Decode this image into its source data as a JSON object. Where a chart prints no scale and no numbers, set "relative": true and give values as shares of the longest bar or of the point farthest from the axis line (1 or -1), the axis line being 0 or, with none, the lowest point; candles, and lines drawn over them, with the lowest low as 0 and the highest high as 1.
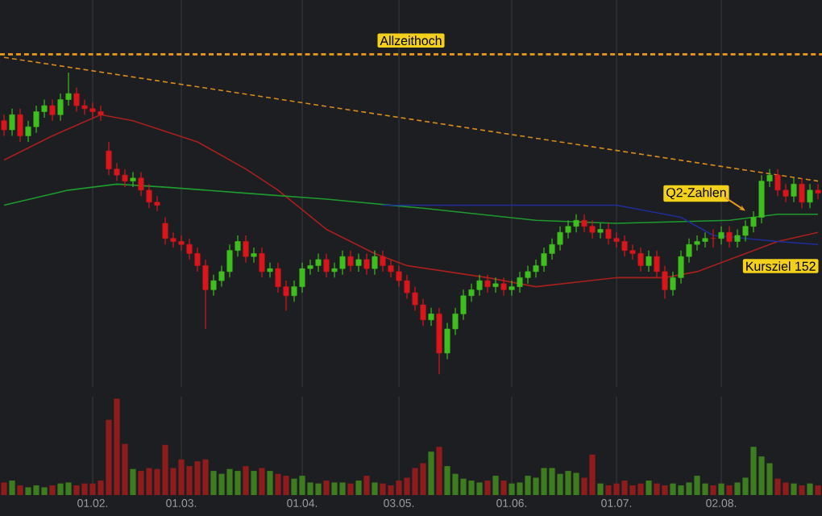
{
  "chart_data": [
    {
      "type": "candlestick",
      "relative": true,
      "grid": "x",
      "tick_labels": false,
      "categories": [
        null,
        null,
        null,
        null,
        null,
        null,
        null,
        null,
        null,
        null,
        null,
        "01.02.",
        null,
        null,
        null,
        null,
        null,
        null,
        null,
        null,
        null,
        null,
        "01.03.",
        null,
        null,
        null,
        null,
        null,
        null,
        null,
        null,
        null,
        null,
        null,
        null,
        null,
        null,
        "01.04.",
        null,
        null,
        null,
        null,
        null,
        null,
        null,
        null,
        null,
        null,
        null,
        "03.05.",
        null,
        null,
        null,
        null,
        null,
        null,
        null,
        null,
        null,
        null,
        null,
        null,
        null,
        "01.06.",
        null,
        null,
        null,
        null,
        null,
        null,
        null,
        null,
        null,
        null,
        null,
        null,
        "01.07.",
        null,
        null,
        null,
        null,
        null,
        null,
        null,
        null,
        null,
        null,
        null,
        null,
        "02.08.",
        null,
        null,
        null,
        null,
        null,
        null,
        null,
        null,
        null,
        null,
        null,
        null
      ],
      "ohlc": [
        [
          0.84,
          0.86,
          0.79,
          0.81
        ],
        [
          0.81,
          0.88,
          0.79,
          0.86
        ],
        [
          0.86,
          0.88,
          0.77,
          0.79
        ],
        [
          0.79,
          0.84,
          0.77,
          0.82
        ],
        [
          0.82,
          0.89,
          0.8,
          0.87
        ],
        [
          0.87,
          0.91,
          0.85,
          0.89
        ],
        [
          0.89,
          0.91,
          0.84,
          0.86
        ],
        [
          0.86,
          0.93,
          0.84,
          0.91
        ],
        [
          0.91,
          1.0,
          0.89,
          0.93
        ],
        [
          0.93,
          0.95,
          0.87,
          0.89
        ],
        [
          0.89,
          0.91,
          0.86,
          0.88
        ],
        [
          0.88,
          0.9,
          0.85,
          0.87
        ],
        [
          0.87,
          0.89,
          0.84,
          0.86
        ],
        [
          0.74,
          0.77,
          0.66,
          0.68
        ],
        [
          0.68,
          0.7,
          0.64,
          0.66
        ],
        [
          0.66,
          0.68,
          0.62,
          0.64
        ],
        [
          0.64,
          0.67,
          0.62,
          0.65
        ],
        [
          0.65,
          0.67,
          0.59,
          0.61
        ],
        [
          0.61,
          0.63,
          0.55,
          0.57
        ],
        [
          0.57,
          0.59,
          0.54,
          0.56
        ],
        [
          0.5,
          0.52,
          0.43,
          0.45
        ],
        [
          0.45,
          0.47,
          0.42,
          0.44
        ],
        [
          0.44,
          0.46,
          0.41,
          0.43
        ],
        [
          0.43,
          0.45,
          0.38,
          0.4
        ],
        [
          0.4,
          0.42,
          0.34,
          0.36
        ],
        [
          0.36,
          0.38,
          0.15,
          0.28
        ],
        [
          0.28,
          0.33,
          0.26,
          0.31
        ],
        [
          0.31,
          0.36,
          0.29,
          0.34
        ],
        [
          0.34,
          0.43,
          0.32,
          0.41
        ],
        [
          0.41,
          0.46,
          0.39,
          0.44
        ],
        [
          0.44,
          0.46,
          0.37,
          0.39
        ],
        [
          0.39,
          0.42,
          0.37,
          0.4
        ],
        [
          0.4,
          0.42,
          0.32,
          0.34
        ],
        [
          0.34,
          0.37,
          0.32,
          0.35
        ],
        [
          0.35,
          0.37,
          0.27,
          0.29
        ],
        [
          0.29,
          0.31,
          0.21,
          0.26
        ],
        [
          0.26,
          0.31,
          0.24,
          0.29
        ],
        [
          0.29,
          0.37,
          0.27,
          0.35
        ],
        [
          0.35,
          0.38,
          0.33,
          0.36
        ],
        [
          0.36,
          0.4,
          0.34,
          0.38
        ],
        [
          0.38,
          0.4,
          0.32,
          0.34
        ],
        [
          0.34,
          0.37,
          0.32,
          0.35
        ],
        [
          0.35,
          0.41,
          0.33,
          0.39
        ],
        [
          0.39,
          0.41,
          0.34,
          0.36
        ],
        [
          0.36,
          0.4,
          0.34,
          0.38
        ],
        [
          0.38,
          0.4,
          0.33,
          0.35
        ],
        [
          0.35,
          0.41,
          0.33,
          0.39
        ],
        [
          0.39,
          0.41,
          0.34,
          0.36
        ],
        [
          0.36,
          0.38,
          0.32,
          0.34
        ],
        [
          0.34,
          0.36,
          0.29,
          0.31
        ],
        [
          0.31,
          0.33,
          0.25,
          0.27
        ],
        [
          0.27,
          0.29,
          0.21,
          0.23
        ],
        [
          0.23,
          0.25,
          0.16,
          0.18
        ],
        [
          0.18,
          0.22,
          0.16,
          0.2
        ],
        [
          0.2,
          0.22,
          0.0,
          0.07
        ],
        [
          0.07,
          0.17,
          0.05,
          0.15
        ],
        [
          0.15,
          0.22,
          0.13,
          0.2
        ],
        [
          0.2,
          0.28,
          0.18,
          0.26
        ],
        [
          0.26,
          0.3,
          0.24,
          0.28
        ],
        [
          0.28,
          0.33,
          0.26,
          0.31
        ],
        [
          0.31,
          0.33,
          0.27,
          0.29
        ],
        [
          0.29,
          0.32,
          0.27,
          0.3
        ],
        [
          0.3,
          0.32,
          0.26,
          0.28
        ],
        [
          0.28,
          0.31,
          0.26,
          0.29
        ],
        [
          0.29,
          0.34,
          0.27,
          0.32
        ],
        [
          0.32,
          0.36,
          0.3,
          0.34
        ],
        [
          0.34,
          0.38,
          0.32,
          0.36
        ],
        [
          0.36,
          0.42,
          0.34,
          0.4
        ],
        [
          0.4,
          0.45,
          0.38,
          0.43
        ],
        [
          0.43,
          0.49,
          0.41,
          0.47
        ],
        [
          0.47,
          0.51,
          0.45,
          0.49
        ],
        [
          0.49,
          0.53,
          0.47,
          0.51
        ],
        [
          0.51,
          0.53,
          0.47,
          0.49
        ],
        [
          0.49,
          0.51,
          0.45,
          0.47
        ],
        [
          0.47,
          0.5,
          0.45,
          0.48
        ],
        [
          0.48,
          0.5,
          0.43,
          0.45
        ],
        [
          0.45,
          0.47,
          0.42,
          0.44
        ],
        [
          0.44,
          0.46,
          0.39,
          0.41
        ],
        [
          0.41,
          0.43,
          0.38,
          0.4
        ],
        [
          0.4,
          0.42,
          0.34,
          0.36
        ],
        [
          0.36,
          0.41,
          0.34,
          0.39
        ],
        [
          0.39,
          0.41,
          0.32,
          0.34
        ],
        [
          0.34,
          0.36,
          0.25,
          0.28
        ],
        [
          0.28,
          0.34,
          0.26,
          0.32
        ],
        [
          0.32,
          0.41,
          0.3,
          0.39
        ],
        [
          0.39,
          0.45,
          0.37,
          0.43
        ],
        [
          0.43,
          0.46,
          0.41,
          0.44
        ],
        [
          0.44,
          0.47,
          0.42,
          0.45
        ],
        [
          0.45,
          0.48,
          0.42,
          0.45
        ],
        [
          0.45,
          0.49,
          0.43,
          0.47
        ],
        [
          0.47,
          0.49,
          0.42,
          0.44
        ],
        [
          0.44,
          0.48,
          0.42,
          0.46
        ],
        [
          0.46,
          0.51,
          0.44,
          0.49
        ],
        [
          0.49,
          0.54,
          0.47,
          0.52
        ],
        [
          0.52,
          0.66,
          0.5,
          0.64
        ],
        [
          0.64,
          0.68,
          0.62,
          0.66
        ],
        [
          0.66,
          0.68,
          0.59,
          0.61
        ],
        [
          0.61,
          0.63,
          0.57,
          0.59
        ],
        [
          0.59,
          0.65,
          0.57,
          0.63
        ],
        [
          0.63,
          0.65,
          0.55,
          0.57
        ],
        [
          0.57,
          0.63,
          0.55,
          0.61
        ],
        [
          0.61,
          0.63,
          0.58,
          0.6
        ]
      ],
      "colors": [
        "#d8161b",
        "#3fbf1f",
        "#d8161b",
        "#3fbf1f",
        "#3fbf1f",
        "#3fbf1f",
        "#d8161b",
        "#3fbf1f",
        "#3fbf1f",
        "#d8161b",
        "#d8161b",
        "#d8161b",
        "#d8161b",
        "#d8161b",
        "#d8161b",
        "#d8161b",
        "#3fbf1f",
        "#d8161b",
        "#d8161b",
        "#d8161b",
        "#d8161b",
        "#d8161b",
        "#d8161b",
        "#d8161b",
        "#d8161b",
        "#d8161b",
        "#3fbf1f",
        "#3fbf1f",
        "#3fbf1f",
        "#3fbf1f",
        "#d8161b",
        "#3fbf1f",
        "#d8161b",
        "#3fbf1f",
        "#d8161b",
        "#d8161b",
        "#3fbf1f",
        "#3fbf1f",
        "#3fbf1f",
        "#3fbf1f",
        "#d8161b",
        "#3fbf1f",
        "#3fbf1f",
        "#d8161b",
        "#3fbf1f",
        "#d8161b",
        "#3fbf1f",
        "#d8161b",
        "#d8161b",
        "#d8161b",
        "#d8161b",
        "#d8161b",
        "#d8161b",
        "#3fbf1f",
        "#d8161b",
        "#3fbf1f",
        "#3fbf1f",
        "#3fbf1f",
        "#3fbf1f",
        "#3fbf1f",
        "#d8161b",
        "#3fbf1f",
        "#d8161b",
        "#3fbf1f",
        "#3fbf1f",
        "#3fbf1f",
        "#3fbf1f",
        "#3fbf1f",
        "#3fbf1f",
        "#3fbf1f",
        "#3fbf1f",
        "#3fbf1f",
        "#d8161b",
        "#d8161b",
        "#3fbf1f",
        "#d8161b",
        "#d8161b",
        "#d8161b",
        "#d8161b",
        "#d8161b",
        "#3fbf1f",
        "#d8161b",
        "#d8161b",
        "#3fbf1f",
        "#3fbf1f",
        "#3fbf1f",
        "#3fbf1f",
        "#3fbf1f",
        "#d8161b",
        "#3fbf1f",
        "#d8161b",
        "#3fbf1f",
        "#3fbf1f",
        "#3fbf1f",
        "#3fbf1f",
        "#3fbf1f",
        "#d8161b",
        "#d8161b",
        "#3fbf1f",
        "#d8161b",
        "#3fbf1f",
        "#d8161b"
      ],
      "series": [
        {
          "type": "line",
          "color": "#a8201e",
          "values": [
            0.71,
            null,
            null,
            null,
            null,
            null,
            0.79,
            null,
            null,
            null,
            null,
            null,
            0.86,
            null,
            null,
            null,
            0.84,
            null,
            null,
            null,
            null,
            null,
            null,
            null,
            0.77,
            null,
            null,
            null,
            null,
            null,
            0.68,
            null,
            null,
            null,
            0.61,
            null,
            null,
            null,
            null,
            null,
            0.48,
            null,
            null,
            null,
            null,
            null,
            0.4,
            null,
            null,
            null,
            0.36,
            null,
            null,
            null,
            null,
            null,
            null,
            null,
            null,
            null,
            0.32,
            null,
            null,
            null,
            null,
            null,
            0.29,
            null,
            null,
            null,
            null,
            null,
            null,
            null,
            null,
            null,
            0.32,
            null,
            null,
            null,
            null,
            null,
            0.32,
            null,
            null,
            null,
            0.34,
            null,
            null,
            null,
            0.38,
            null,
            null,
            null,
            null,
            null,
            0.44,
            null,
            null,
            null,
            null,
            0.47
          ]
        },
        {
          "type": "line",
          "color": "#1f9a2e",
          "values": [
            0.56,
            null,
            null,
            null,
            null,
            null,
            null,
            null,
            0.61,
            null,
            null,
            null,
            null,
            null,
            0.63,
            null,
            null,
            null,
            null,
            null,
            0.62,
            null,
            null,
            null,
            null,
            null,
            null,
            null,
            null,
            null,
            0.6,
            null,
            null,
            null,
            null,
            null,
            null,
            null,
            null,
            null,
            0.58,
            null,
            null,
            null,
            null,
            null,
            null,
            null,
            null,
            null,
            null,
            null,
            0.55,
            null,
            null,
            null,
            null,
            null,
            null,
            null,
            null,
            null,
            null,
            null,
            null,
            null,
            0.51,
            null,
            null,
            null,
            null,
            null,
            null,
            null,
            null,
            null,
            0.5,
            null,
            null,
            null,
            null,
            null,
            null,
            null,
            null,
            null,
            null,
            null,
            null,
            null,
            0.51,
            null,
            null,
            null,
            null,
            null,
            0.53,
            null,
            null,
            null,
            null,
            0.53
          ]
        },
        {
          "type": "line",
          "color": "#1f2f9a",
          "values": [
            null,
            null,
            null,
            null,
            null,
            null,
            null,
            null,
            null,
            null,
            null,
            null,
            null,
            null,
            null,
            null,
            null,
            null,
            null,
            null,
            null,
            null,
            null,
            null,
            null,
            null,
            null,
            null,
            null,
            null,
            null,
            null,
            null,
            null,
            null,
            null,
            null,
            null,
            null,
            null,
            null,
            null,
            null,
            null,
            null,
            null,
            null,
            0.56,
            null,
            null,
            null,
            null,
            null,
            null,
            null,
            null,
            null,
            null,
            null,
            null,
            0.56,
            null,
            null,
            null,
            null,
            null,
            null,
            null,
            null,
            null,
            null,
            null,
            null,
            null,
            null,
            null,
            0.56,
            null,
            null,
            null,
            null,
            null,
            null,
            null,
            0.52,
            null,
            null,
            null,
            0.46,
            null,
            null,
            null,
            null,
            null,
            null,
            null,
            0.44,
            null,
            null,
            null,
            null,
            0.43
          ]
        },
        {
          "type": "line",
          "color": "#d98c1e",
          "line_style": "dashed",
          "values": [
            1.05,
            null,
            null,
            null,
            null,
            null,
            null,
            null,
            null,
            null,
            null,
            null,
            null,
            null,
            null,
            null,
            null,
            null,
            null,
            null,
            null,
            null,
            null,
            null,
            null,
            null,
            null,
            null,
            null,
            null,
            null,
            null,
            null,
            null,
            null,
            null,
            null,
            null,
            null,
            null,
            null,
            null,
            null,
            null,
            null,
            null,
            null,
            null,
            null,
            null,
            null,
            null,
            null,
            null,
            null,
            null,
            null,
            null,
            null,
            null,
            null,
            null,
            null,
            null,
            null,
            null,
            null,
            null,
            null,
            null,
            null,
            null,
            null,
            null,
            null,
            null,
            null,
            null,
            null,
            null,
            null,
            null,
            null,
            null,
            null,
            null,
            null,
            null,
            null,
            null,
            null,
            null,
            null,
            null,
            null,
            null,
            null,
            null,
            null,
            null,
            null,
            0.64
          ]
        }
      ],
      "ref_lines": [
        {
          "axis": "y",
          "value": 1.06,
          "label": "Allzeithoch",
          "color": "#e89b1c",
          "line_style": "dashed"
        }
      ],
      "annotations": [
        "Q2-Zahlen",
        "Kursziel 152"
      ]
    },
    {
      "type": "bar",
      "relative": true,
      "grid": "x",
      "tick_labels": "x",
      "categories": [
        null,
        null,
        null,
        null,
        null,
        null,
        null,
        null,
        null,
        null,
        null,
        "01.02.",
        null,
        null,
        null,
        null,
        null,
        null,
        null,
        null,
        null,
        null,
        "01.03.",
        null,
        null,
        null,
        null,
        null,
        null,
        null,
        null,
        null,
        null,
        null,
        null,
        null,
        null,
        "01.04.",
        null,
        null,
        null,
        null,
        null,
        null,
        null,
        null,
        null,
        null,
        null,
        "03.05.",
        null,
        null,
        null,
        null,
        null,
        null,
        null,
        null,
        null,
        null,
        null,
        null,
        null,
        "01.06.",
        null,
        null,
        null,
        null,
        null,
        null,
        null,
        null,
        null,
        null,
        null,
        null,
        "01.07.",
        null,
        null,
        null,
        null,
        null,
        null,
        null,
        null,
        null,
        null,
        null,
        null,
        "02.08.",
        null,
        null,
        null,
        null,
        null,
        null,
        null,
        null,
        null,
        null,
        null,
        null
      ],
      "values": [
        0.13,
        0.15,
        0.1,
        0.08,
        0.1,
        0.08,
        0.1,
        0.12,
        0.13,
        0.1,
        0.12,
        0.12,
        0.15,
        0.78,
        1.0,
        0.53,
        0.27,
        0.25,
        0.28,
        0.27,
        0.52,
        0.28,
        0.37,
        0.3,
        0.35,
        0.37,
        0.25,
        0.22,
        0.27,
        0.25,
        0.3,
        0.25,
        0.28,
        0.25,
        0.22,
        0.2,
        0.17,
        0.2,
        0.13,
        0.12,
        0.15,
        0.13,
        0.13,
        0.12,
        0.15,
        0.2,
        0.13,
        0.12,
        0.1,
        0.15,
        0.18,
        0.28,
        0.33,
        0.45,
        0.5,
        0.3,
        0.22,
        0.17,
        0.15,
        0.13,
        0.15,
        0.2,
        0.15,
        0.12,
        0.13,
        0.2,
        0.18,
        0.28,
        0.28,
        0.22,
        0.25,
        0.23,
        0.18,
        0.42,
        0.12,
        0.1,
        0.12,
        0.15,
        0.1,
        0.12,
        0.15,
        0.12,
        0.1,
        0.12,
        0.1,
        0.13,
        0.2,
        0.12,
        0.1,
        0.12,
        0.1,
        0.13,
        0.18,
        0.5,
        0.4,
        0.33,
        0.17,
        0.13,
        0.12,
        0.1,
        0.12,
        0.1
      ],
      "colors": [
        "#8f1c1c",
        "#3d7d1f",
        "#8f1c1c",
        "#3d7d1f",
        "#3d7d1f",
        "#3d7d1f",
        "#8f1c1c",
        "#3d7d1f",
        "#3d7d1f",
        "#8f1c1c",
        "#8f1c1c",
        "#8f1c1c",
        "#8f1c1c",
        "#8f1c1c",
        "#8f1c1c",
        "#8f1c1c",
        "#3d7d1f",
        "#8f1c1c",
        "#8f1c1c",
        "#8f1c1c",
        "#8f1c1c",
        "#8f1c1c",
        "#8f1c1c",
        "#8f1c1c",
        "#8f1c1c",
        "#8f1c1c",
        "#3d7d1f",
        "#3d7d1f",
        "#3d7d1f",
        "#3d7d1f",
        "#8f1c1c",
        "#3d7d1f",
        "#8f1c1c",
        "#3d7d1f",
        "#8f1c1c",
        "#8f1c1c",
        "#3d7d1f",
        "#3d7d1f",
        "#3d7d1f",
        "#3d7d1f",
        "#8f1c1c",
        "#3d7d1f",
        "#3d7d1f",
        "#8f1c1c",
        "#3d7d1f",
        "#8f1c1c",
        "#3d7d1f",
        "#8f1c1c",
        "#8f1c1c",
        "#8f1c1c",
        "#8f1c1c",
        "#8f1c1c",
        "#8f1c1c",
        "#3d7d1f",
        "#8f1c1c",
        "#3d7d1f",
        "#3d7d1f",
        "#3d7d1f",
        "#3d7d1f",
        "#3d7d1f",
        "#8f1c1c",
        "#3d7d1f",
        "#8f1c1c",
        "#3d7d1f",
        "#3d7d1f",
        "#3d7d1f",
        "#3d7d1f",
        "#3d7d1f",
        "#3d7d1f",
        "#3d7d1f",
        "#3d7d1f",
        "#3d7d1f",
        "#8f1c1c",
        "#8f1c1c",
        "#3d7d1f",
        "#8f1c1c",
        "#8f1c1c",
        "#8f1c1c",
        "#8f1c1c",
        "#8f1c1c",
        "#3d7d1f",
        "#8f1c1c",
        "#8f1c1c",
        "#3d7d1f",
        "#3d7d1f",
        "#3d7d1f",
        "#3d7d1f",
        "#3d7d1f",
        "#8f1c1c",
        "#3d7d1f",
        "#8f1c1c",
        "#3d7d1f",
        "#3d7d1f",
        "#3d7d1f",
        "#3d7d1f",
        "#3d7d1f",
        "#8f1c1c",
        "#8f1c1c",
        "#3d7d1f",
        "#8f1c1c",
        "#3d7d1f",
        "#8f1c1c"
      ]
    }
  ]
}
